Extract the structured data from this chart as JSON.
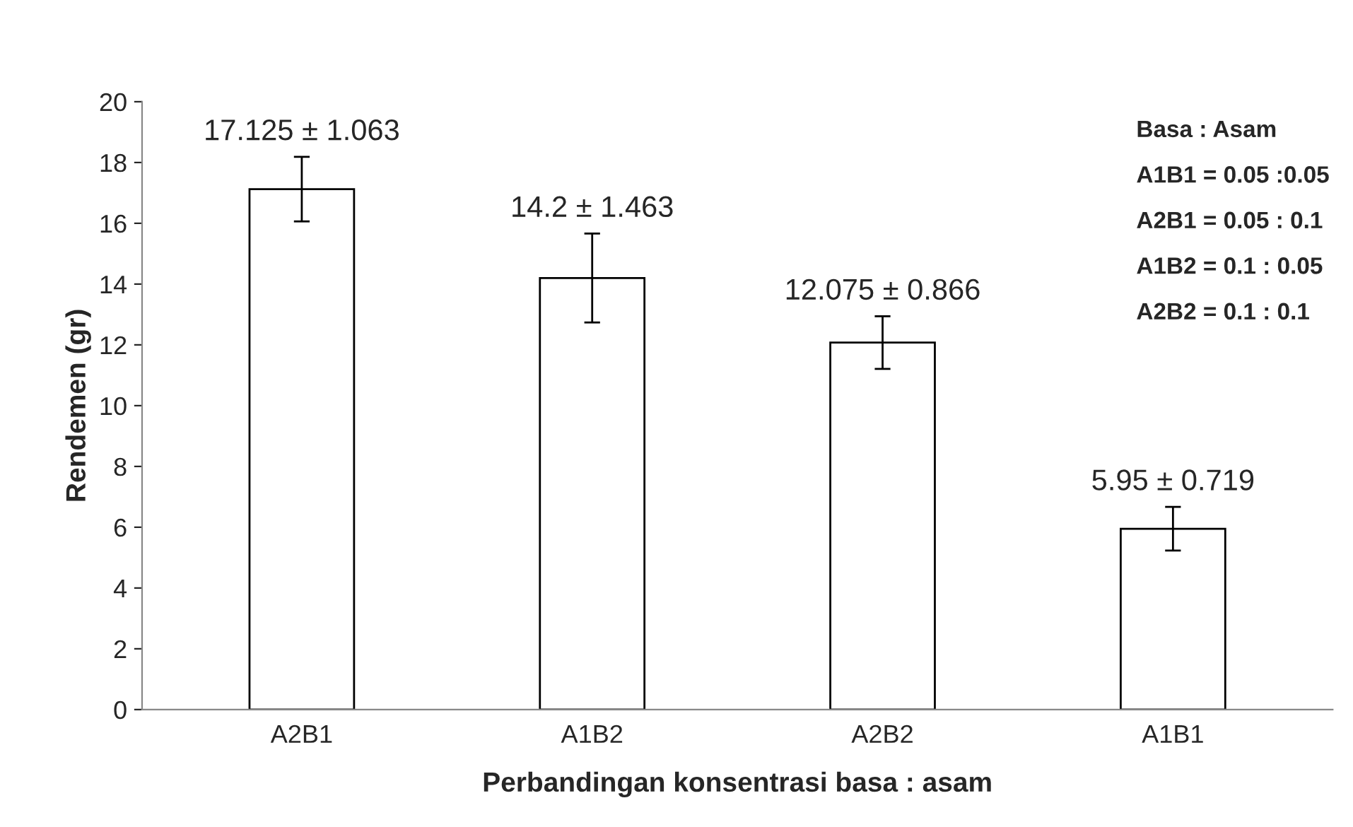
{
  "chart_data": {
    "type": "bar",
    "xlabel": "Perbandingan konsentrasi basa : asam",
    "ylabel": "Rendemen (gr)",
    "categories": [
      "A2B1",
      "A1B2",
      "A2B2",
      "A1B1"
    ],
    "values": [
      17.125,
      14.2,
      12.075,
      5.95
    ],
    "errors": [
      1.063,
      1.463,
      0.866,
      0.719
    ],
    "value_labels": [
      "17.125 ± 1.063",
      "14.2 ± 1.463",
      "12.075 ± 0.866",
      "5.95 ± 0.719"
    ],
    "color": "#ffffff",
    "ylim": [
      0,
      20
    ],
    "yticks": [
      0,
      2,
      4,
      6,
      8,
      10,
      12,
      14,
      16,
      18,
      20
    ],
    "grid": false,
    "annotations": [
      "Basa : Asam",
      "A1B1 = 0.05 :0.05",
      "A2B1 = 0.05 : 0.1",
      "A1B2 = 0.1 : 0.05",
      "A2B2 = 0.1 : 0.1"
    ]
  }
}
